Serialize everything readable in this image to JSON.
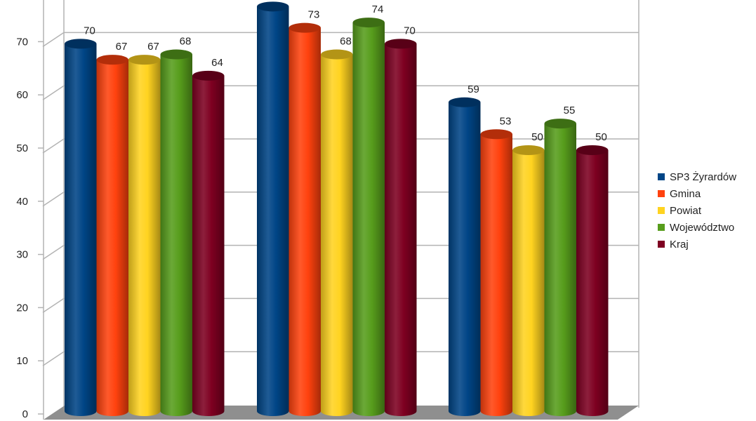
{
  "chart_data": {
    "type": "bar",
    "title": "",
    "xlabel": "",
    "ylabel": "",
    "ylim": [
      0,
      80
    ],
    "yticks": [
      0,
      10,
      20,
      30,
      40,
      50,
      60,
      70
    ],
    "grid": true,
    "legend": "right",
    "categories": [
      "",
      "",
      ""
    ],
    "series": [
      {
        "name": "SP3 Żyrardów",
        "color": "#004586",
        "values": [
          70,
          77,
          59
        ],
        "labels": [
          "70",
          "",
          "59"
        ]
      },
      {
        "name": "Gmina",
        "color": "#ff420e",
        "values": [
          67,
          73,
          53
        ],
        "labels": [
          "67",
          "73",
          "53"
        ]
      },
      {
        "name": "Powiat",
        "color": "#ffd320",
        "values": [
          67,
          68,
          50
        ],
        "labels": [
          "67",
          "68",
          "50"
        ]
      },
      {
        "name": "Województwo",
        "color": "#579d1c",
        "values": [
          68,
          74,
          55
        ],
        "labels": [
          "68",
          "74",
          "55"
        ]
      },
      {
        "name": "Kraj",
        "color": "#7e0021",
        "values": [
          64,
          70,
          50
        ],
        "labels": [
          "64",
          "70",
          "50"
        ]
      }
    ]
  }
}
